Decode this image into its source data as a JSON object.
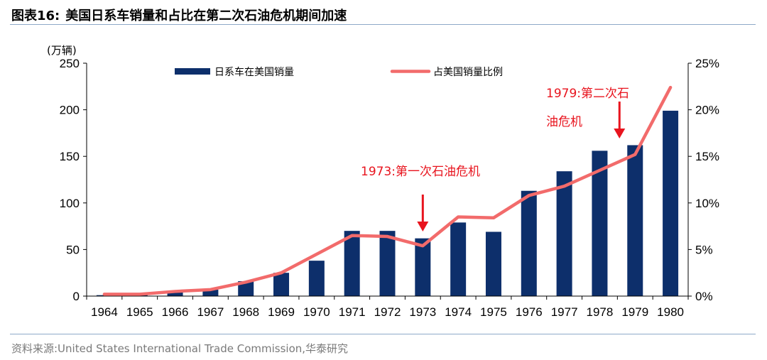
{
  "figure": {
    "label": "图表16:",
    "title": "美国日系车销量和占比在第二次石油危机期间加速",
    "source": "资料来源:United States International Trade Commission,华泰研究"
  },
  "chart_data": {
    "type": "bar+line",
    "categories": [
      "1964",
      "1965",
      "1966",
      "1967",
      "1968",
      "1969",
      "1970",
      "1971",
      "1972",
      "1973",
      "1974",
      "1975",
      "1976",
      "1977",
      "1978",
      "1979",
      "1980"
    ],
    "series": [
      {
        "name": "日系车在美国销量",
        "type": "bar",
        "axis": "left",
        "values": [
          1,
          2,
          5,
          7,
          16,
          25,
          38,
          70,
          70,
          62,
          79,
          69,
          113,
          134,
          156,
          162,
          199
        ]
      },
      {
        "name": "占美国销量比例",
        "type": "line",
        "axis": "right",
        "values": [
          0.2,
          0.2,
          0.5,
          0.7,
          1.5,
          2.5,
          4.5,
          6.5,
          6.4,
          5.4,
          8.5,
          8.4,
          10.8,
          11.8,
          13.5,
          15.2,
          22.4
        ]
      }
    ],
    "ylabel_left": "(万辆)",
    "ylim_left": [
      0,
      250
    ],
    "yticks_left": [
      "0",
      "50",
      "100",
      "150",
      "200",
      "250"
    ],
    "ylim_right": [
      0,
      25
    ],
    "yticks_right": [
      "0%",
      "5%",
      "10%",
      "15%",
      "20%",
      "25%"
    ],
    "legend": "top",
    "annotations": [
      {
        "category": "1973",
        "text": "1973:第一次石油危机"
      },
      {
        "category": "1979",
        "text_line1": "1979:第二次石",
        "text_line2": "油危机"
      }
    ],
    "colors": {
      "bar": "#0d2f6b",
      "line": "#f26b6b",
      "annotation": "#e8141e",
      "axis": "#000000"
    }
  }
}
